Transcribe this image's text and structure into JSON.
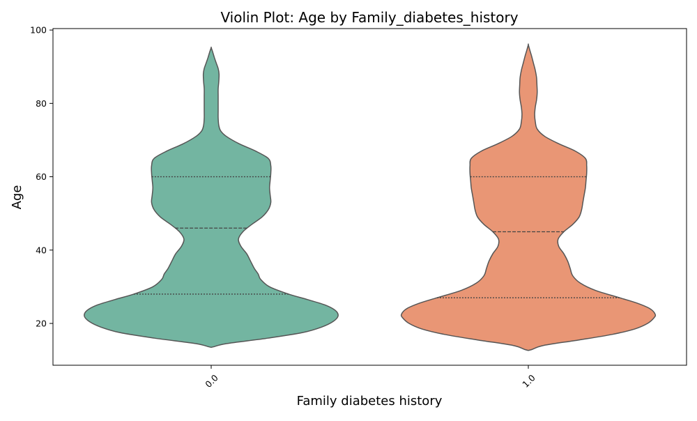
{
  "chart_data": {
    "type": "violin",
    "title": "Violin Plot: Age by Family_diabetes_history",
    "xlabel": "Family diabetes history",
    "ylabel": "Age",
    "ylim": [
      8.6,
      100.4
    ],
    "yticks": [
      20,
      40,
      60,
      80,
      100
    ],
    "grid": false,
    "legend": "none",
    "inner": "quartile",
    "categories": [
      "0.0",
      "1.0"
    ],
    "colors": [
      "#73b5a1",
      "#e99675"
    ],
    "edge_color": "#555555",
    "violins": [
      {
        "category": "0.0",
        "min": 13.6,
        "max": 95.2,
        "q1": 28,
        "median": 46,
        "q3": 60,
        "density": [
          [
            13.6,
            0.015
          ],
          [
            14.5,
            0.12
          ],
          [
            16,
            0.45
          ],
          [
            17.5,
            0.72
          ],
          [
            19,
            0.87
          ],
          [
            20.5,
            0.96
          ],
          [
            22,
            1.0
          ],
          [
            23.5,
            0.98
          ],
          [
            25,
            0.9
          ],
          [
            26.5,
            0.76
          ],
          [
            28,
            0.61
          ],
          [
            30,
            0.46
          ],
          [
            32,
            0.39
          ],
          [
            33.5,
            0.37
          ],
          [
            35,
            0.34
          ],
          [
            37,
            0.31
          ],
          [
            39,
            0.28
          ],
          [
            41,
            0.235
          ],
          [
            43,
            0.215
          ],
          [
            45,
            0.25
          ],
          [
            47,
            0.32
          ],
          [
            49,
            0.4
          ],
          [
            51,
            0.45
          ],
          [
            53,
            0.47
          ],
          [
            55,
            0.465
          ],
          [
            57,
            0.46
          ],
          [
            59,
            0.465
          ],
          [
            61,
            0.47
          ],
          [
            63,
            0.47
          ],
          [
            65,
            0.45
          ],
          [
            67,
            0.35
          ],
          [
            69,
            0.22
          ],
          [
            71,
            0.12
          ],
          [
            72.5,
            0.075
          ],
          [
            74,
            0.06
          ],
          [
            76,
            0.055
          ],
          [
            78,
            0.055
          ],
          [
            80,
            0.055
          ],
          [
            82,
            0.055
          ],
          [
            84,
            0.055
          ],
          [
            86,
            0.06
          ],
          [
            88,
            0.062
          ],
          [
            89.5,
            0.055
          ],
          [
            91,
            0.04
          ],
          [
            92.5,
            0.025
          ],
          [
            94,
            0.012
          ],
          [
            95.2,
            0.0
          ]
        ]
      },
      {
        "category": "1.0",
        "min": 12.8,
        "max": 96.0,
        "q1": 27,
        "median": 45,
        "q3": 60,
        "density": [
          [
            12.8,
            0.02
          ],
          [
            14,
            0.12
          ],
          [
            15.5,
            0.4
          ],
          [
            17,
            0.66
          ],
          [
            18.5,
            0.84
          ],
          [
            20,
            0.94
          ],
          [
            21.5,
            0.99
          ],
          [
            22.5,
            1.0
          ],
          [
            24,
            0.96
          ],
          [
            25.5,
            0.86
          ],
          [
            27,
            0.72
          ],
          [
            29,
            0.53
          ],
          [
            31,
            0.41
          ],
          [
            33,
            0.35
          ],
          [
            35,
            0.33
          ],
          [
            37,
            0.31
          ],
          [
            39,
            0.28
          ],
          [
            41,
            0.24
          ],
          [
            43,
            0.235
          ],
          [
            45,
            0.28
          ],
          [
            47,
            0.35
          ],
          [
            49,
            0.4
          ],
          [
            51,
            0.42
          ],
          [
            53,
            0.43
          ],
          [
            55,
            0.44
          ],
          [
            57,
            0.45
          ],
          [
            59,
            0.455
          ],
          [
            61,
            0.46
          ],
          [
            63,
            0.46
          ],
          [
            65,
            0.45
          ],
          [
            67,
            0.37
          ],
          [
            69,
            0.24
          ],
          [
            71,
            0.13
          ],
          [
            73,
            0.07
          ],
          [
            75,
            0.055
          ],
          [
            77,
            0.05
          ],
          [
            79,
            0.055
          ],
          [
            81,
            0.065
          ],
          [
            83,
            0.07
          ],
          [
            85,
            0.068
          ],
          [
            87,
            0.065
          ],
          [
            89,
            0.055
          ],
          [
            91,
            0.04
          ],
          [
            93,
            0.025
          ],
          [
            94.5,
            0.012
          ],
          [
            96,
            0.0
          ]
        ]
      }
    ]
  }
}
